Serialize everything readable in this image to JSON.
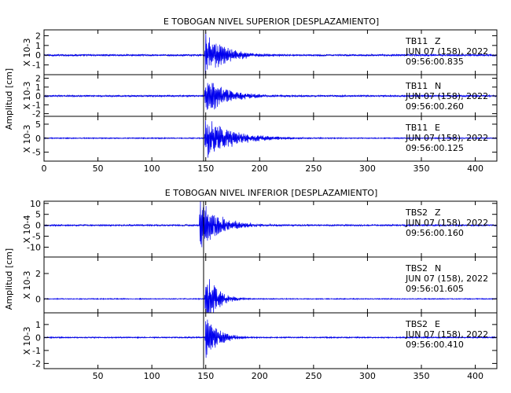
{
  "chart_data": [
    {
      "type": "line",
      "title": "E TOBOGAN NIVEL SUPERIOR [DESPLAZAMIENTO]",
      "xlim": [
        0,
        420
      ],
      "xticks": [
        0,
        50,
        100,
        150,
        200,
        250,
        300,
        350,
        400
      ],
      "shared_ylabel": "Amplitud [cm]",
      "event_marker_x": 148,
      "series": [
        {
          "station": "TB11",
          "component": "Z",
          "date_line": "JUN 07 (158), 2022",
          "time": "09:56:00.835",
          "scale_label": "X 10-3",
          "ylim": [
            -2,
            2.6
          ],
          "yticks": [
            -1,
            0,
            1,
            2
          ],
          "onset_x": 149,
          "peak_amplitude": 2.3,
          "decay_s": 18,
          "noise": 0.08
        },
        {
          "station": "TB11",
          "component": "N",
          "date_line": "JUN 07 (158), 2022",
          "time": "09:56:00.260",
          "scale_label": "X 10-3",
          "ylim": [
            -2.3,
            2.4
          ],
          "yticks": [
            -2,
            -1,
            0,
            1,
            2
          ],
          "onset_x": 149,
          "peak_amplitude": 2.2,
          "decay_s": 20,
          "noise": 0.08
        },
        {
          "station": "TB11",
          "component": "E",
          "date_line": "JUN 07 (158), 2022",
          "time": "09:56:00.125",
          "scale_label": "X 10-3",
          "ylim": [
            -8.2,
            7.8
          ],
          "yticks": [
            -5,
            0,
            5
          ],
          "onset_x": 149,
          "peak_amplitude": 7.0,
          "decay_s": 26,
          "noise": 0.15
        }
      ]
    },
    {
      "type": "line",
      "title": "E TOBOGAN NIVEL INFERIOR [DESPLAZAMIENTO]",
      "xlim": [
        0,
        420
      ],
      "xticks": [
        50,
        100,
        150,
        200,
        250,
        300,
        350,
        400
      ],
      "shared_ylabel": "Amplitud [cm]",
      "event_marker_x": 148,
      "series": [
        {
          "station": "TBS2",
          "component": "Z",
          "date_line": "JUN 07 (158), 2022",
          "time": "09:56:00.160",
          "scale_label": "X 10-4",
          "ylim": [
            -14.5,
            11
          ],
          "yticks": [
            -10,
            -5,
            0,
            5,
            10
          ],
          "onset_x": 144,
          "peak_amplitude": 11.0,
          "decay_s": 18,
          "noise": 0.3
        },
        {
          "station": "TBS2",
          "component": "N",
          "date_line": "JUN 07 (158), 2022",
          "time": "09:56:01.605",
          "scale_label": "X 10-3",
          "ylim": [
            -1.1,
            3.3
          ],
          "yticks": [
            0,
            2
          ],
          "onset_x": 149,
          "peak_amplitude": 2.6,
          "decay_s": 10,
          "noise": 0.03
        },
        {
          "station": "TBS2",
          "component": "E",
          "date_line": "JUN 07 (158), 2022",
          "time": "09:56:00.410",
          "scale_label": "X 10-3",
          "ylim": [
            -2.4,
            1.9
          ],
          "yticks": [
            -2,
            -1,
            0,
            1
          ],
          "onset_x": 149,
          "peak_amplitude": 1.6,
          "decay_s": 12,
          "noise": 0.04
        }
      ]
    }
  ],
  "colors": {
    "trace": "#0000ee",
    "axes": "#000000"
  }
}
